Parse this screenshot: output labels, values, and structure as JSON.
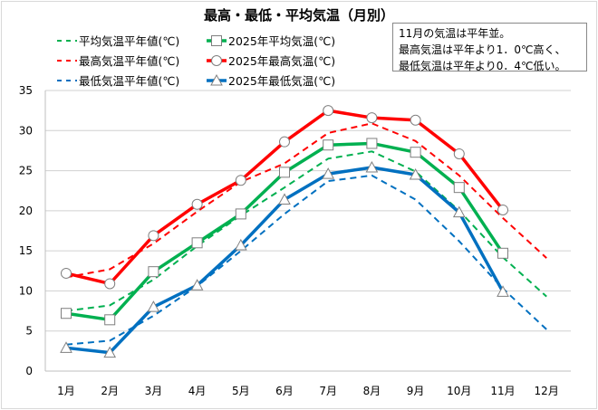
{
  "chart_data": {
    "type": "line",
    "title": "最高・最低・平均気温（月別）",
    "categories": [
      "1月",
      "2月",
      "3月",
      "4月",
      "5月",
      "6月",
      "7月",
      "8月",
      "9月",
      "10月",
      "11月",
      "12月"
    ],
    "ylim": [
      0,
      35
    ],
    "yticks": [
      0,
      5,
      10,
      15,
      20,
      25,
      30,
      35
    ],
    "grid": true,
    "legend_position": "top-left",
    "series": [
      {
        "name": "平均気温平年値(℃)",
        "color": "#00b050",
        "style": "dashed",
        "marker": "none",
        "values": [
          7.5,
          8.2,
          11.4,
          15.6,
          19.4,
          22.9,
          26.5,
          27.4,
          24.9,
          20.0,
          14.2,
          9.3
        ]
      },
      {
        "name": "2025年平均気温(℃)",
        "color": "#00b050",
        "style": "solid",
        "marker": "square",
        "values": [
          7.2,
          6.4,
          12.4,
          16.0,
          19.6,
          24.8,
          28.2,
          28.4,
          27.3,
          22.9,
          14.7,
          null
        ]
      },
      {
        "name": "最高気温平年値(℃)",
        "color": "#ff0000",
        "style": "dashed",
        "marker": "none",
        "values": [
          11.7,
          12.7,
          15.9,
          19.9,
          23.6,
          25.9,
          29.7,
          30.9,
          28.7,
          24.4,
          19.1,
          14.1
        ]
      },
      {
        "name": "2025年最高気温(℃)",
        "color": "#ff0000",
        "style": "solid",
        "marker": "circle",
        "values": [
          12.2,
          10.9,
          16.9,
          20.8,
          23.8,
          28.6,
          32.5,
          31.6,
          31.3,
          27.1,
          20.1,
          null
        ]
      },
      {
        "name": "最低気温平年値(℃)",
        "color": "#0070c0",
        "style": "dashed",
        "marker": "none",
        "values": [
          3.3,
          3.8,
          6.9,
          10.6,
          15.0,
          19.6,
          23.7,
          24.4,
          21.4,
          16.2,
          10.3,
          5.2
        ]
      },
      {
        "name": "2025年最低気温(℃)",
        "color": "#0070c0",
        "style": "solid",
        "marker": "triangle",
        "values": [
          2.9,
          2.3,
          8.0,
          10.7,
          15.7,
          21.4,
          24.6,
          25.4,
          24.5,
          19.8,
          9.9,
          null
        ]
      }
    ],
    "annotation": [
      "11月の気温は平年並。",
      "最高気温は平年より1．0℃高く、",
      "最低気温は平年より0．4℃低い。"
    ]
  }
}
